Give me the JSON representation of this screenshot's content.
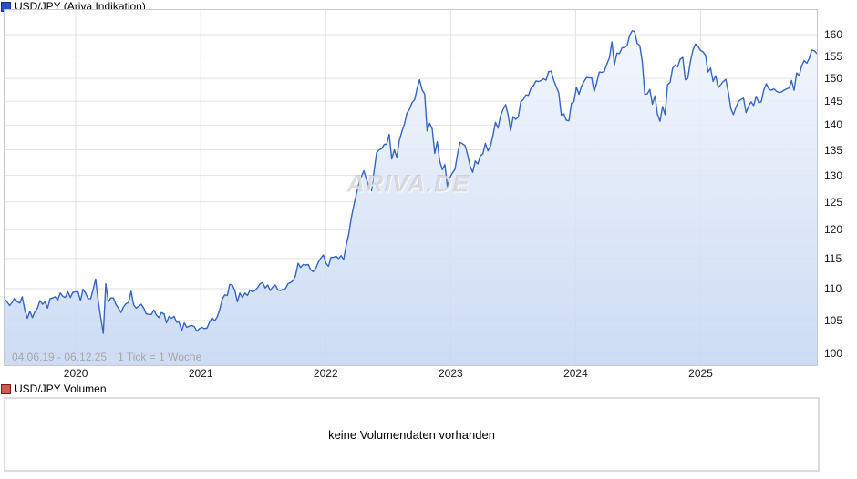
{
  "header": {
    "symbol_label": "USD/JPY (Ariva Indikation)"
  },
  "volume_header": {
    "label": "USD/JPY Volumen"
  },
  "volume_panel": {
    "empty_text": "keine Volumendaten vorhanden"
  },
  "footer": {
    "range": "04.06.19 - 06.12.25",
    "tick_info": "1 Tick = 1 Woche"
  },
  "watermark": "ARIVA.DE",
  "colors": {
    "line": "#3464c4",
    "fill_top": "#f4f7fd",
    "fill_bottom": "#c6d7f3",
    "grid": "#e2e2e2",
    "plot_border": "#c9c9c9",
    "legend_price_fill": "#2850c8",
    "legend_price_border": "#172e7c",
    "legend_volume_fill": "#d05a55",
    "legend_volume_border": "#7a1e16"
  },
  "chart_data": {
    "type": "area",
    "title": "USD/JPY (Ariva Indikation)",
    "interval": "1 Tick = 1 Woche",
    "y_axis": {
      "scale": "log",
      "ticks": [
        100,
        105,
        110,
        115,
        120,
        125,
        130,
        135,
        140,
        145,
        150,
        155,
        160
      ],
      "side": "right"
    },
    "x_axis": {
      "start_label": "04.06.19",
      "end_label": "06.12.25",
      "start_frac": 2019.43,
      "end_frac": 2025.93,
      "year_labels": [
        "2020",
        "2021",
        "2022",
        "2023",
        "2024",
        "2025"
      ],
      "year_values": [
        2020,
        2021,
        2022,
        2023,
        2024,
        2025
      ]
    },
    "legend_position": "top-left",
    "grid": true,
    "series": [
      {
        "name": "USD/JPY",
        "values": [
          108.3,
          107.9,
          107.3,
          107.8,
          108.5,
          107.9,
          107.7,
          108.7,
          106.6,
          105.3,
          106.4,
          105.4,
          106.3,
          106.9,
          108.1,
          107.5,
          107.9,
          106.9,
          108.4,
          108.5,
          108.7,
          108.2,
          109.3,
          108.8,
          108.6,
          109.5,
          108.6,
          109.4,
          109.5,
          109.5,
          108.1,
          109.9,
          109.3,
          108.4,
          108.4,
          109.8,
          111.6,
          108.1,
          105.4,
          103.0,
          110.8,
          107.9,
          108.5,
          108.5,
          107.5,
          106.9,
          106.2,
          107.1,
          107.6,
          107.8,
          109.6,
          107.4,
          106.9,
          107.2,
          107.5,
          106.9,
          106.0,
          105.9,
          105.9,
          106.6,
          105.8,
          105.4,
          106.2,
          106.0,
          104.6,
          105.6,
          105.3,
          105.6,
          104.7,
          104.7,
          103.4,
          104.6,
          103.9,
          104.1,
          104.2,
          104.0,
          103.3,
          103.7,
          103.9,
          103.7,
          103.8,
          104.7,
          105.4,
          104.9,
          105.5,
          106.6,
          108.3,
          109.0,
          108.9,
          110.7,
          110.6,
          109.7,
          107.9,
          109.3,
          108.6,
          109.3,
          108.9,
          109.8,
          109.5,
          109.7,
          110.2,
          110.8,
          111.0,
          110.1,
          110.6,
          109.7,
          110.3,
          110.6,
          109.8,
          109.7,
          109.9,
          110.0,
          110.8,
          111.0,
          111.3,
          112.2,
          114.2,
          113.5,
          114.0,
          113.9,
          114.0,
          113.1,
          112.8,
          113.4,
          114.4,
          115.1,
          115.6,
          114.2,
          113.7,
          115.2,
          115.2,
          115.4,
          115.0,
          115.5,
          114.8,
          117.3,
          119.2,
          122.1,
          124.3,
          126.4,
          128.5,
          129.8,
          130.9,
          129.3,
          127.9,
          127.1,
          130.8,
          134.4,
          135.0,
          135.2,
          136.1,
          136.1,
          138.1,
          133.2,
          135.0,
          133.5,
          136.9,
          138.7,
          140.2,
          142.5,
          143.3,
          144.7,
          145.3,
          147.7,
          149.7,
          147.5,
          146.6,
          138.8,
          140.4,
          139.2,
          134.3,
          136.6,
          132.7,
          131.1,
          132.1,
          127.9,
          129.6,
          130.5,
          131.2,
          134.2,
          136.5,
          136.2,
          135.8,
          134.0,
          131.8,
          130.6,
          132.8,
          132.2,
          133.8,
          134.2,
          136.3,
          134.8,
          135.7,
          137.9,
          140.6,
          139.4,
          141.9,
          143.3,
          144.3,
          142.1,
          138.8,
          141.8,
          141.2,
          141.7,
          144.9,
          145.4,
          146.4,
          146.3,
          147.8,
          148.4,
          149.4,
          149.3,
          149.5,
          149.9,
          149.6,
          151.5,
          151.6,
          149.6,
          148.2,
          146.8,
          142.1,
          142.4,
          141.0,
          140.9,
          144.6,
          144.9,
          148.1,
          146.5,
          148.3,
          149.3,
          150.2,
          150.1,
          150.1,
          147.1,
          149.0,
          151.4,
          151.3,
          151.6,
          153.2,
          154.6,
          158.3,
          153.0,
          155.7,
          155.6,
          156.9,
          157.0,
          157.4,
          159.8,
          160.9,
          160.7,
          157.9,
          157.5,
          153.7,
          146.5,
          146.6,
          147.6,
          144.4,
          146.2,
          142.3,
          140.8,
          143.9,
          142.2,
          148.6,
          149.1,
          152.3,
          153.0,
          152.6,
          154.3,
          154.7,
          149.7,
          150.0,
          153.7,
          156.3,
          157.8,
          157.3,
          156.3,
          156.0,
          155.2,
          151.4,
          152.3,
          149.3,
          150.6,
          148.0,
          148.6,
          149.3,
          149.8,
          146.9,
          143.5,
          142.2,
          143.7,
          145.0,
          145.4,
          145.7,
          142.6,
          144.0,
          144.9,
          144.1,
          146.1,
          144.7,
          144.9,
          147.4,
          148.8,
          147.7,
          147.4,
          147.7,
          147.2,
          146.9,
          147.0,
          147.4,
          147.7,
          147.9,
          149.5,
          147.4,
          151.2,
          150.6,
          152.8,
          154.0,
          153.4,
          154.5,
          156.4,
          156.2,
          155.6
        ]
      }
    ]
  }
}
